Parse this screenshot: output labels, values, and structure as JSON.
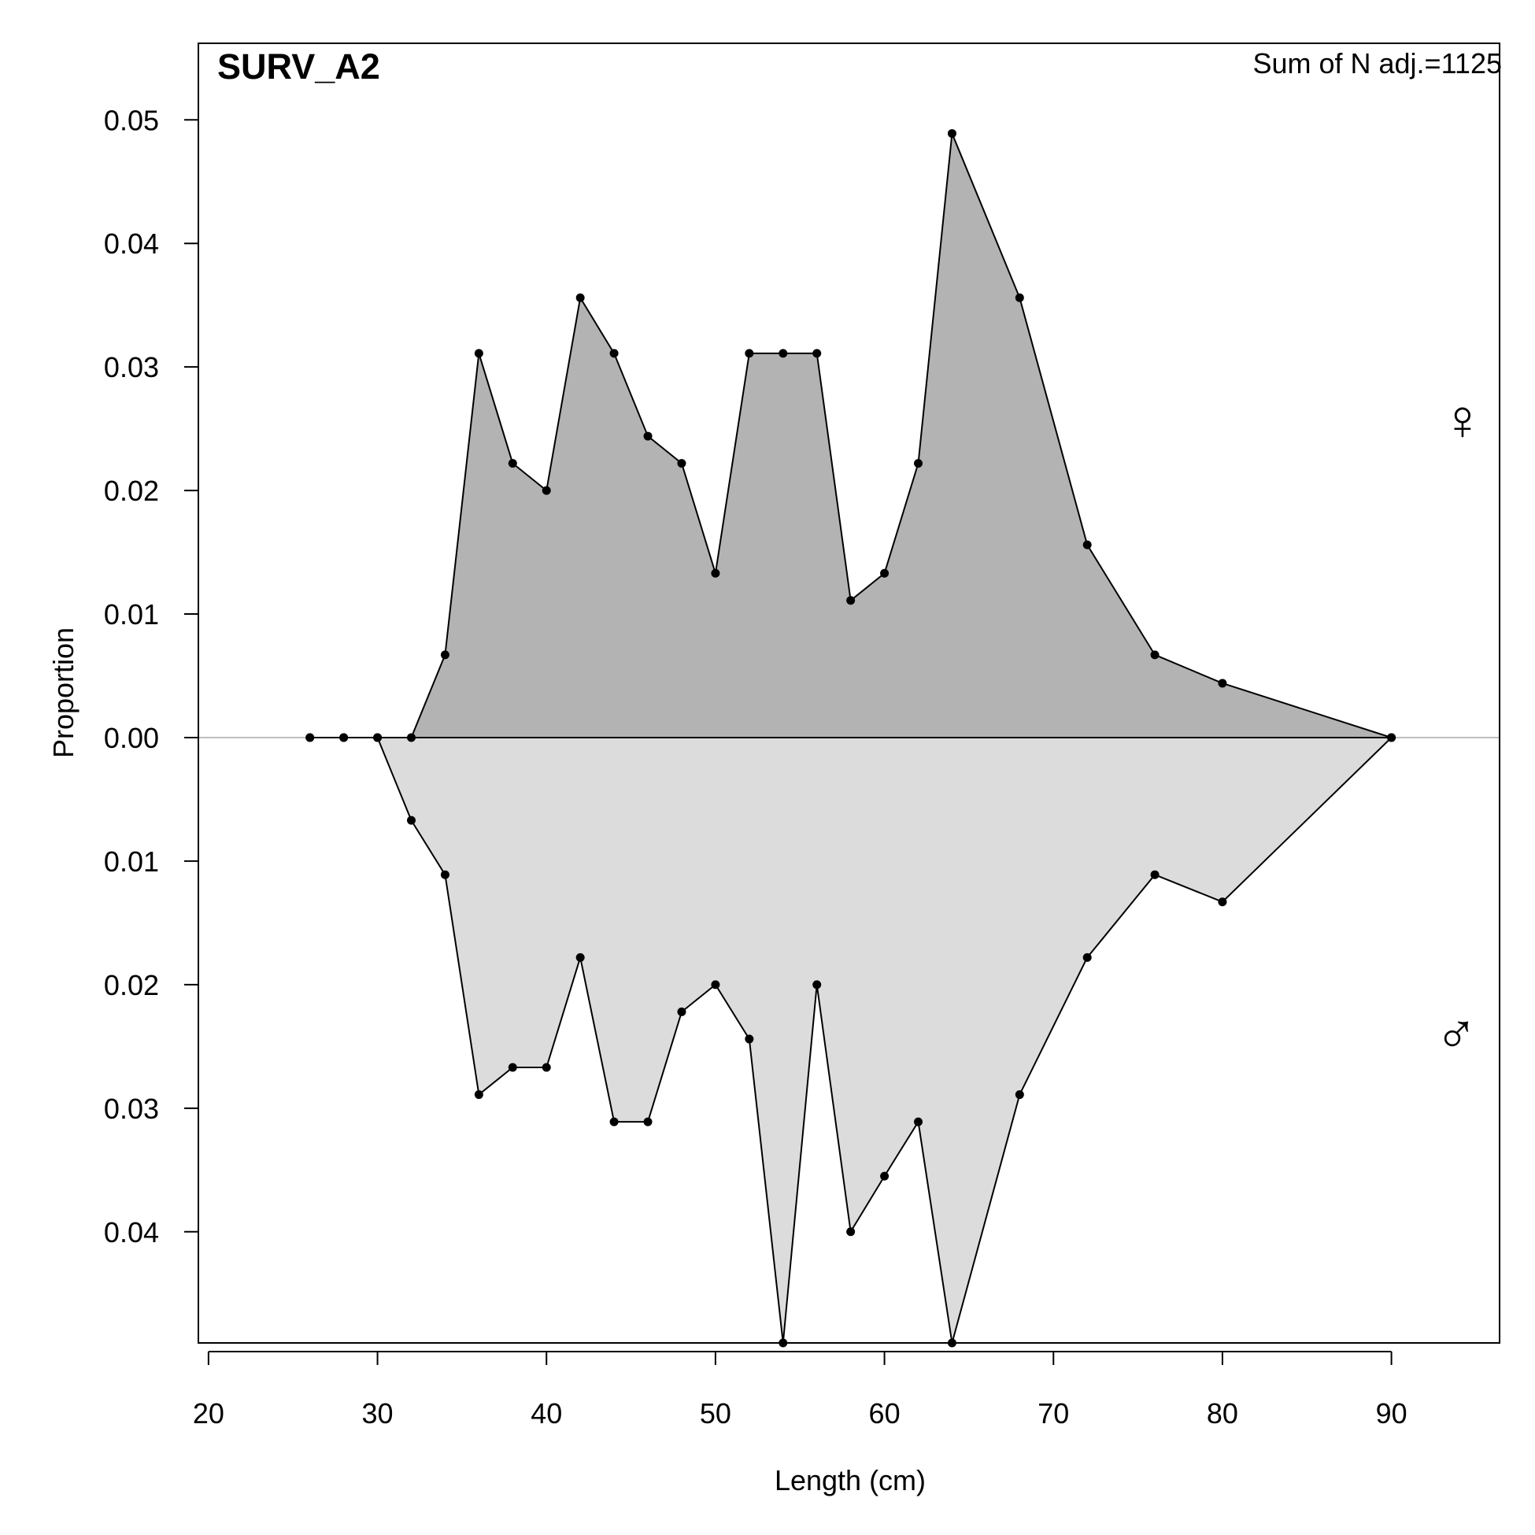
{
  "chart_data": {
    "type": "area",
    "title": "SURV_A2",
    "annotation": "Sum of N adj.=1125",
    "xlabel": "Length (cm)",
    "ylabel": "Proportion",
    "xlim": [
      19.4,
      96.4
    ],
    "ylim": [
      -0.049,
      0.0562
    ],
    "x_ticks": [
      20,
      30,
      40,
      50,
      60,
      70,
      80,
      90
    ],
    "x_tick_labels": [
      "20",
      "30",
      "40",
      "50",
      "60",
      "70",
      "80",
      "90"
    ],
    "y_ticks": [
      0.05,
      0.04,
      0.03,
      0.02,
      0.01,
      0.0,
      -0.01,
      -0.02,
      -0.03,
      -0.04
    ],
    "y_tick_labels": [
      "0.05",
      "0.04",
      "0.03",
      "0.02",
      "0.01",
      "0.00",
      "0.01",
      "0.02",
      "0.03",
      "0.04"
    ],
    "x": [
      26,
      28,
      30,
      32,
      34,
      36,
      38,
      40,
      42,
      44,
      46,
      48,
      50,
      52,
      54,
      56,
      58,
      60,
      62,
      64,
      68,
      72,
      76,
      80,
      90
    ],
    "series": [
      {
        "name": "♀",
        "direction": "up",
        "fill": "#b3b3b3",
        "label_color": "#cc0000",
        "values": [
          0,
          0,
          0,
          0,
          0.0067,
          0.0311,
          0.0222,
          0.02,
          0.0356,
          0.0311,
          0.0244,
          0.0222,
          0.0133,
          0.0311,
          0.0311,
          0.0311,
          0.0111,
          0.0133,
          0.0222,
          0.0489,
          0.0356,
          0.0156,
          0.0067,
          0.0044,
          0
        ]
      },
      {
        "name": "♂",
        "direction": "down",
        "fill": "#dcdcdc",
        "label_color": "#0000cc",
        "values": [
          0,
          0,
          0,
          0.0067,
          0.0111,
          0.0289,
          0.0267,
          0.0267,
          0.0178,
          0.0311,
          0.0311,
          0.0222,
          0.02,
          0.0244,
          0.049,
          0.02,
          0.04,
          0.0355,
          0.0311,
          0.049,
          0.0289,
          0.0178,
          0.0111,
          0.0133,
          0
        ]
      }
    ],
    "zero_line_color": "#bebebe",
    "grid": false,
    "legend": "none"
  }
}
